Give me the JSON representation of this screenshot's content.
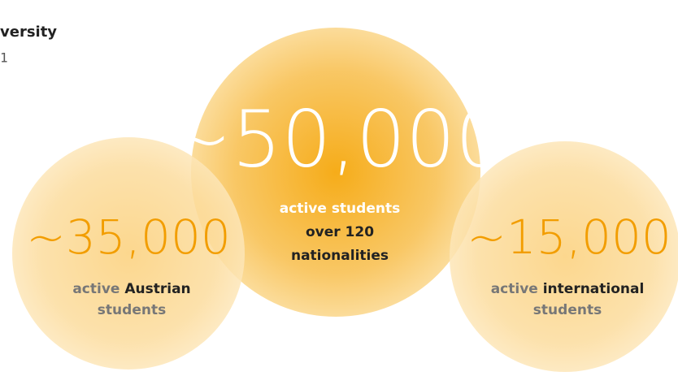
{
  "header": {
    "title": "versity",
    "subtitle": "1"
  },
  "circles": [
    {
      "number": "~50,000",
      "line1": "active students",
      "line2": "over 120",
      "line3": "nationalities"
    },
    {
      "number": "~35,000",
      "prefix": "active",
      "emphasis": "Austrian",
      "line2": "students"
    },
    {
      "number": "~15,000",
      "prefix": "active",
      "emphasis": "international",
      "line2": "students"
    }
  ]
}
